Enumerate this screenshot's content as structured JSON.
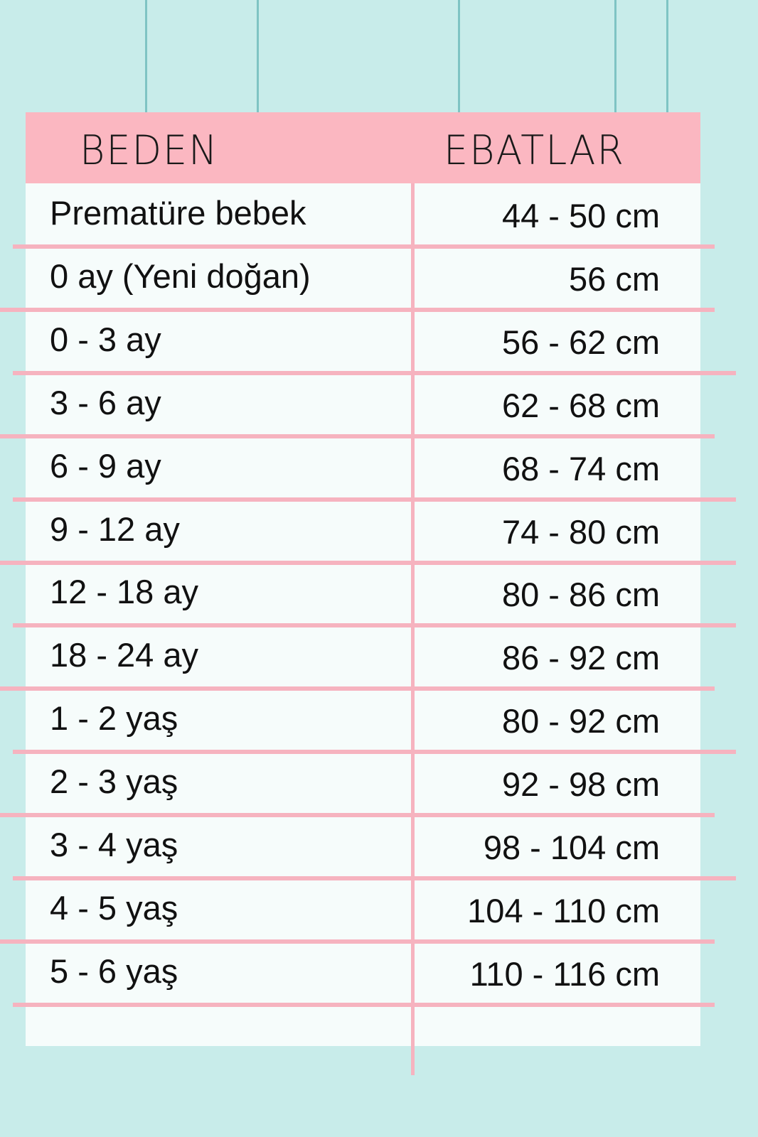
{
  "header": {
    "size_label": "BEDEN",
    "measure_label": "EBATLAR"
  },
  "colors": {
    "background": "#c8ecea",
    "header": "#fbb7c1",
    "lines": "#f6b3bf",
    "table": "#f6fcfb"
  },
  "rows": [
    {
      "size": "Prematüre bebek",
      "measure": "44 - 50 cm"
    },
    {
      "size": "0 ay (Yeni doğan)",
      "measure": "56 cm"
    },
    {
      "size": "0 - 3 ay",
      "measure": "56 - 62 cm"
    },
    {
      "size": "3 - 6 ay",
      "measure": "62 - 68 cm"
    },
    {
      "size": "6 - 9 ay",
      "measure": "68 - 74 cm"
    },
    {
      "size": "9 - 12 ay",
      "measure": "74 - 80 cm"
    },
    {
      "size": "12 - 18 ay",
      "measure": "80 - 86 cm"
    },
    {
      "size": "18 - 24 ay",
      "measure": "86 - 92 cm"
    },
    {
      "size": "1 - 2 yaş",
      "measure": "80 - 92 cm"
    },
    {
      "size": "2 - 3 yaş",
      "measure": "92 - 98 cm"
    },
    {
      "size": "3 - 4 yaş",
      "measure": "98 - 104 cm"
    },
    {
      "size": "4 - 5 yaş",
      "measure": "104 - 110 cm"
    },
    {
      "size": "5 - 6 yaş",
      "measure": "110 - 116 cm"
    }
  ]
}
